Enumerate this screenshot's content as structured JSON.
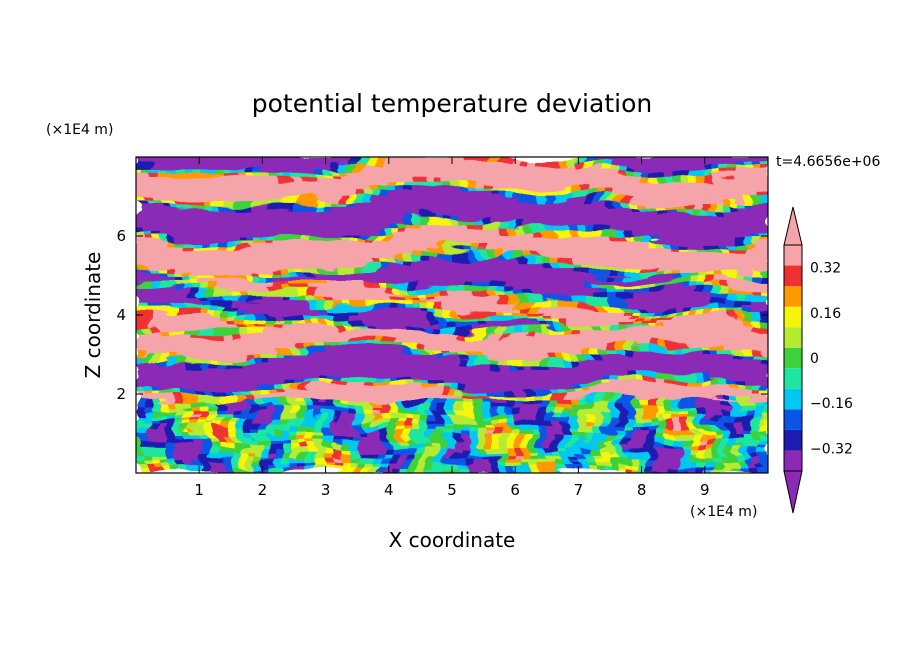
{
  "chart_data": {
    "type": "heatmap",
    "title": "potential temperature deviation",
    "xlabel": "X coordinate",
    "ylabel": "Z coordinate",
    "x_unit_label": "(×1E4 m)",
    "y_unit_label": "(×1E4 m)",
    "time_label": "t=4.6656e+06",
    "xlim": [
      0,
      10
    ],
    "ylim": [
      0,
      8
    ],
    "x_ticks": [
      1,
      2,
      3,
      4,
      5,
      6,
      7,
      8,
      9
    ],
    "x_tick_labels": [
      "1",
      "2",
      "3",
      "4",
      "5",
      "6",
      "7",
      "8",
      "9"
    ],
    "y_ticks": [
      2,
      4,
      6
    ],
    "y_tick_labels": [
      "2",
      "4",
      "6"
    ],
    "colorbar": {
      "levels": [
        -0.4,
        -0.32,
        -0.24,
        -0.16,
        -0.08,
        0,
        0.08,
        0.16,
        0.24,
        0.32,
        0.4
      ],
      "colors": [
        "#8b2ab6",
        "#1e1cb0",
        "#0a55e6",
        "#00c8f0",
        "#1ee6a0",
        "#3dd23d",
        "#b6eb32",
        "#f5f50a",
        "#ff9900",
        "#f03030",
        "#f5a5aa"
      ],
      "over_color": "#f5a5aa",
      "under_color": "#8b2ab6",
      "tick_values": [
        0.32,
        0.16,
        0,
        -0.16,
        -0.32
      ],
      "tick_labels": [
        "0.32",
        "0.16",
        "0",
        "−0.16",
        "−0.32"
      ]
    },
    "field_bands": [
      {
        "z": [
          6.5,
          8.0
        ],
        "pattern": "alternating purple/pink streaks"
      },
      {
        "z": [
          5.0,
          6.5
        ],
        "pattern": "purple and pink layers"
      },
      {
        "z": [
          3.8,
          5.0
        ],
        "pattern": "mixed layers with green, yellow, orange, blue streaks"
      },
      {
        "z": [
          2.0,
          3.8
        ],
        "pattern": "pink and purple layers with red and blue edges"
      },
      {
        "z": [
          0.0,
          2.0
        ],
        "pattern": "turbulent green/yellow/cyan with blue eddies"
      }
    ]
  }
}
